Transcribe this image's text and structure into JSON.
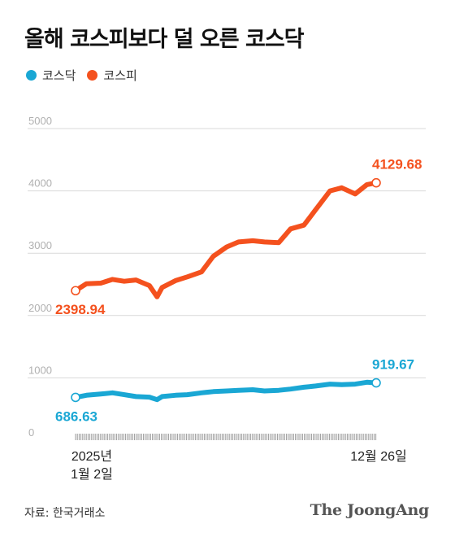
{
  "title": "올해 코스피보다 덜 오른 코스닥",
  "legend": [
    {
      "name": "코스닥",
      "color": "#1aa7d4"
    },
    {
      "name": "코스피",
      "color": "#f4511e"
    }
  ],
  "source": "자료: 한국거래소",
  "logo": "The JoongAng",
  "chart_data": {
    "type": "line",
    "x": [
      "2025-01-02",
      "2025-01-15",
      "2025-02-01",
      "2025-02-15",
      "2025-03-01",
      "2025-03-15",
      "2025-03-31",
      "2025-04-09",
      "2025-04-15",
      "2025-05-01",
      "2025-05-15",
      "2025-06-01",
      "2025-06-15",
      "2025-07-01",
      "2025-07-15",
      "2025-08-01",
      "2025-08-15",
      "2025-09-01",
      "2025-09-15",
      "2025-10-01",
      "2025-10-15",
      "2025-11-01",
      "2025-11-15",
      "2025-12-01",
      "2025-12-15",
      "2025-12-26"
    ],
    "x_start_label": [
      "2025년",
      "1월 2일"
    ],
    "x_end_label": "12월 26일",
    "yticks": [
      0,
      1000,
      2000,
      3000,
      4000,
      5000
    ],
    "ylim": [
      0,
      5000
    ],
    "grid": true,
    "series": [
      {
        "name": "코스피",
        "color": "#f4511e",
        "start_label": "2398.94",
        "end_label": "4129.68",
        "values": [
          2398.94,
          2510,
          2520,
          2580,
          2550,
          2570,
          2480,
          2300,
          2450,
          2560,
          2620,
          2700,
          2950,
          3100,
          3180,
          3200,
          3180,
          3170,
          3390,
          3450,
          3700,
          4000,
          4050,
          3950,
          4100,
          4129.68
        ]
      },
      {
        "name": "코스닥",
        "color": "#1aa7d4",
        "start_label": "686.63",
        "end_label": "919.67",
        "values": [
          686.63,
          720,
          740,
          760,
          730,
          700,
          690,
          650,
          700,
          720,
          730,
          760,
          780,
          790,
          800,
          810,
          790,
          800,
          820,
          850,
          870,
          900,
          890,
          900,
          930,
          919.67
        ]
      }
    ]
  }
}
